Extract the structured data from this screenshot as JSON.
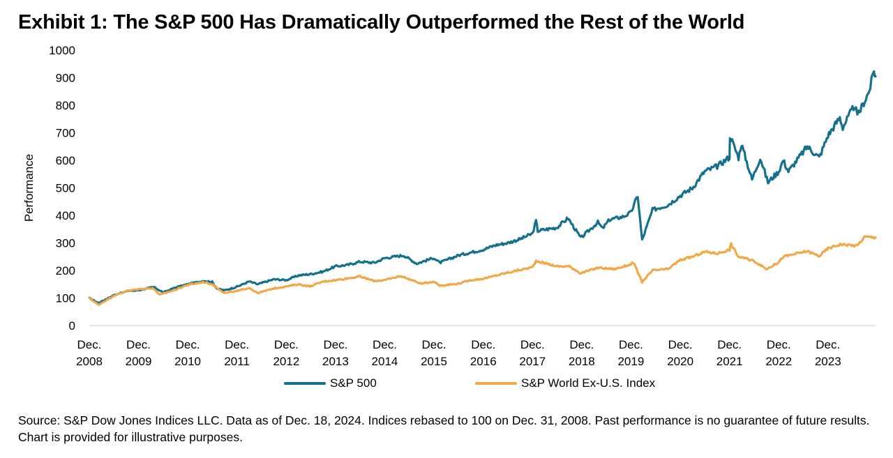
{
  "title": "Exhibit 1: The S&P 500 Has Dramatically Outperformed the Rest of the World",
  "source_note": "Source: S&P Dow Jones Indices LLC. Data as of Dec. 18, 2024. Indices rebased to 100 on Dec. 31, 2008. Past performance is no guarantee of future results. Chart is provided for illustrative purposes.",
  "colors": {
    "sp500": "#14708c",
    "world_ex_us": "#f0a848",
    "axis": "#c8c8c8"
  },
  "chart_data": {
    "type": "line",
    "title": "Exhibit 1: The S&P 500 Has Dramatically Outperformed the Rest of the World",
    "xlabel": "",
    "ylabel": "Performance",
    "ylim": [
      0,
      1000
    ],
    "yticks": [
      0,
      100,
      200,
      300,
      400,
      500,
      600,
      700,
      800,
      900,
      1000
    ],
    "xlim": [
      "2008-12-31",
      "2024-12-18"
    ],
    "xticks": [
      {
        "date": "2008-12-31",
        "label": [
          "Dec.",
          "2008"
        ]
      },
      {
        "date": "2009-12-31",
        "label": [
          "Dec.",
          "2009"
        ]
      },
      {
        "date": "2010-12-31",
        "label": [
          "Dec.",
          "2010"
        ]
      },
      {
        "date": "2011-12-31",
        "label": [
          "Dec.",
          "2011"
        ]
      },
      {
        "date": "2012-12-31",
        "label": [
          "Dec.",
          "2012"
        ]
      },
      {
        "date": "2013-12-31",
        "label": [
          "Dec.",
          "2013"
        ]
      },
      {
        "date": "2014-12-31",
        "label": [
          "Dec.",
          "2014"
        ]
      },
      {
        "date": "2015-12-31",
        "label": [
          "Dec.",
          "2015"
        ]
      },
      {
        "date": "2016-12-31",
        "label": [
          "Dec.",
          "2016"
        ]
      },
      {
        "date": "2017-12-31",
        "label": [
          "Dec.",
          "2017"
        ]
      },
      {
        "date": "2018-12-31",
        "label": [
          "Dec.",
          "2018"
        ]
      },
      {
        "date": "2019-12-31",
        "label": [
          "Dec.",
          "2019"
        ]
      },
      {
        "date": "2020-12-31",
        "label": [
          "Dec.",
          "2020"
        ]
      },
      {
        "date": "2021-12-31",
        "label": [
          "Dec.",
          "2021"
        ]
      },
      {
        "date": "2022-12-31",
        "label": [
          "Dec.",
          "2022"
        ]
      },
      {
        "date": "2023-12-31",
        "label": [
          "Dec.",
          "2023"
        ]
      }
    ],
    "grid": false,
    "legend": "bottom-center",
    "series": [
      {
        "name": "S&P 500",
        "color": "#14708c",
        "points": [
          [
            "2008-12-31",
            100
          ],
          [
            "2009-03-09",
            82
          ],
          [
            "2009-06-30",
            110
          ],
          [
            "2009-09-30",
            125
          ],
          [
            "2009-12-31",
            128
          ],
          [
            "2010-04-23",
            140
          ],
          [
            "2010-07-02",
            120
          ],
          [
            "2010-09-30",
            138
          ],
          [
            "2010-12-31",
            150
          ],
          [
            "2011-04-29",
            163
          ],
          [
            "2011-06-30",
            158
          ],
          [
            "2011-08-08",
            133
          ],
          [
            "2011-10-03",
            128
          ],
          [
            "2011-12-31",
            141
          ],
          [
            "2012-03-31",
            160
          ],
          [
            "2012-06-01",
            150
          ],
          [
            "2012-09-30",
            168
          ],
          [
            "2012-12-31",
            165
          ],
          [
            "2013-03-31",
            182
          ],
          [
            "2013-06-30",
            187
          ],
          [
            "2013-09-30",
            196
          ],
          [
            "2013-12-31",
            215
          ],
          [
            "2014-03-31",
            220
          ],
          [
            "2014-06-30",
            232
          ],
          [
            "2014-10-15",
            228
          ],
          [
            "2014-12-31",
            245
          ],
          [
            "2015-05-20",
            255
          ],
          [
            "2015-08-25",
            225
          ],
          [
            "2015-12-31",
            246
          ],
          [
            "2016-02-11",
            228
          ],
          [
            "2016-06-30",
            255
          ],
          [
            "2016-12-31",
            276
          ],
          [
            "2017-03-31",
            292
          ],
          [
            "2017-06-30",
            300
          ],
          [
            "2017-09-30",
            314
          ],
          [
            "2017-12-31",
            334
          ],
          [
            "2018-01-26",
            380
          ],
          [
            "2018-02-08",
            344
          ],
          [
            "2018-06-30",
            356
          ],
          [
            "2018-09-20",
            390
          ],
          [
            "2018-12-24",
            318
          ],
          [
            "2019-04-30",
            375
          ],
          [
            "2019-06-03",
            352
          ],
          [
            "2019-07-26",
            385
          ],
          [
            "2019-10-31",
            395
          ],
          [
            "2019-12-31",
            410
          ],
          [
            "2020-02-19",
            472
          ],
          [
            "2020-03-23",
            310
          ],
          [
            "2020-06-08",
            420
          ],
          [
            "2020-09-30",
            438
          ],
          [
            "2020-12-31",
            472
          ],
          [
            "2021-03-31",
            500
          ],
          [
            "2021-06-30",
            560
          ],
          [
            "2021-09-30",
            578
          ],
          [
            "2021-12-31",
            612
          ],
          [
            "2022-01-03",
            690
          ],
          [
            "2022-03-08",
            610
          ],
          [
            "2022-03-29",
            660
          ],
          [
            "2022-06-16",
            530
          ],
          [
            "2022-08-16",
            610
          ],
          [
            "2022-10-12",
            520
          ],
          [
            "2022-12-31",
            560
          ],
          [
            "2023-02-02",
            600
          ],
          [
            "2023-03-13",
            560
          ],
          [
            "2023-07-31",
            650
          ],
          [
            "2023-10-27",
            610
          ],
          [
            "2023-12-31",
            690
          ],
          [
            "2024-03-28",
            755
          ],
          [
            "2024-04-19",
            720
          ],
          [
            "2024-07-16",
            800
          ],
          [
            "2024-08-05",
            760
          ],
          [
            "2024-10-31",
            850
          ],
          [
            "2024-12-06",
            925
          ],
          [
            "2024-12-18",
            905
          ]
        ]
      },
      {
        "name": "S&P World Ex-U.S. Index",
        "color": "#f0a848",
        "points": [
          [
            "2008-12-31",
            100
          ],
          [
            "2009-03-09",
            75
          ],
          [
            "2009-06-30",
            108
          ],
          [
            "2009-09-30",
            125
          ],
          [
            "2009-12-31",
            132
          ],
          [
            "2010-04-15",
            136
          ],
          [
            "2010-06-07",
            112
          ],
          [
            "2010-09-30",
            130
          ],
          [
            "2010-12-31",
            148
          ],
          [
            "2011-04-29",
            158
          ],
          [
            "2011-06-30",
            150
          ],
          [
            "2011-09-30",
            118
          ],
          [
            "2011-12-31",
            125
          ],
          [
            "2012-03-31",
            137
          ],
          [
            "2012-06-01",
            118
          ],
          [
            "2012-09-30",
            135
          ],
          [
            "2012-12-31",
            142
          ],
          [
            "2013-03-31",
            150
          ],
          [
            "2013-06-24",
            142
          ],
          [
            "2013-09-30",
            160
          ],
          [
            "2013-12-31",
            165
          ],
          [
            "2014-06-30",
            178
          ],
          [
            "2014-10-15",
            162
          ],
          [
            "2014-12-31",
            165
          ],
          [
            "2015-04-30",
            180
          ],
          [
            "2015-09-28",
            152
          ],
          [
            "2015-12-31",
            160
          ],
          [
            "2016-02-11",
            145
          ],
          [
            "2016-06-27",
            152
          ],
          [
            "2016-09-30",
            165
          ],
          [
            "2016-12-31",
            170
          ],
          [
            "2017-06-30",
            192
          ],
          [
            "2017-12-31",
            212
          ],
          [
            "2018-01-26",
            235
          ],
          [
            "2018-06-30",
            215
          ],
          [
            "2018-09-30",
            215
          ],
          [
            "2018-12-24",
            190
          ],
          [
            "2019-04-30",
            210
          ],
          [
            "2019-08-31",
            205
          ],
          [
            "2019-12-31",
            222
          ],
          [
            "2020-01-17",
            230
          ],
          [
            "2020-03-23",
            158
          ],
          [
            "2020-06-08",
            200
          ],
          [
            "2020-09-30",
            205
          ],
          [
            "2020-12-31",
            238
          ],
          [
            "2021-03-31",
            250
          ],
          [
            "2021-06-30",
            268
          ],
          [
            "2021-09-30",
            262
          ],
          [
            "2021-12-31",
            275
          ],
          [
            "2022-01-12",
            295
          ],
          [
            "2022-03-07",
            250
          ],
          [
            "2022-06-30",
            235
          ],
          [
            "2022-09-30",
            205
          ],
          [
            "2022-12-31",
            230
          ],
          [
            "2023-02-02",
            250
          ],
          [
            "2023-07-31",
            270
          ],
          [
            "2023-10-27",
            252
          ],
          [
            "2023-12-31",
            280
          ],
          [
            "2024-03-31",
            295
          ],
          [
            "2024-08-05",
            290
          ],
          [
            "2024-09-27",
            322
          ],
          [
            "2024-12-18",
            320
          ]
        ]
      }
    ]
  }
}
